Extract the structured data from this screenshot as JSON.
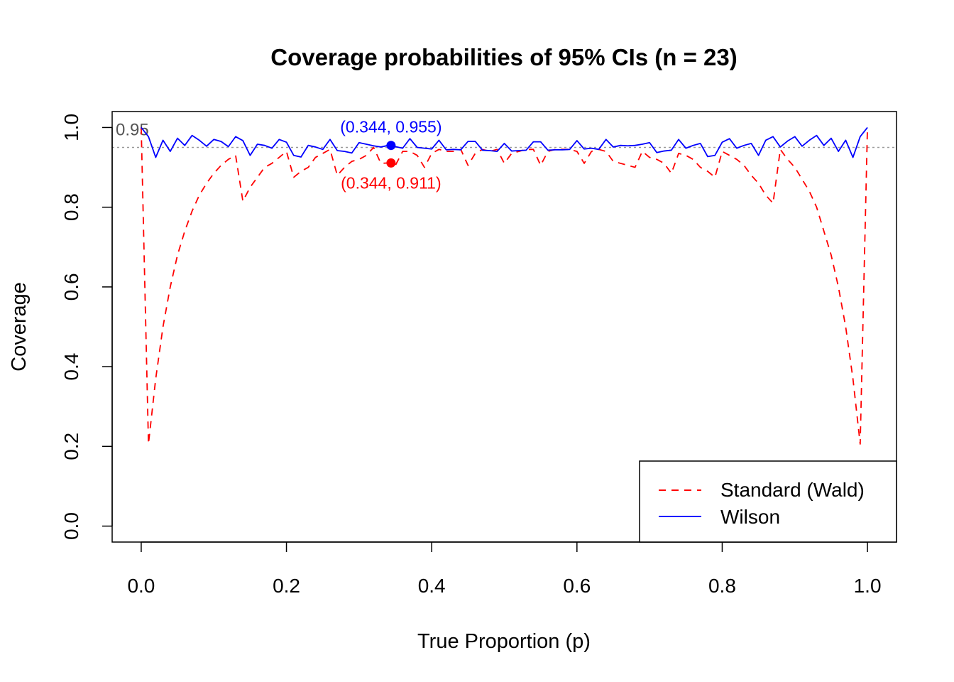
{
  "chart_data": {
    "type": "line",
    "title": "Coverage probabilities of 95% CIs (n = 23)",
    "xlabel": "True Proportion (p)",
    "ylabel": "Coverage",
    "xlim": [
      -0.04,
      1.04
    ],
    "ylim": [
      -0.04,
      1.04
    ],
    "x_ticks": [
      "0.0",
      "0.2",
      "0.4",
      "0.6",
      "0.8",
      "1.0"
    ],
    "y_ticks": [
      "0.0",
      "0.2",
      "0.4",
      "0.6",
      "0.8",
      "1.0"
    ],
    "reference_line": {
      "y": 0.95,
      "label": "0.95",
      "color": "#999999"
    },
    "legend": {
      "position": "bottom-right"
    },
    "series": [
      {
        "name": "Standard (Wald)",
        "color": "#ff0000",
        "dash": "dashed",
        "x": [
          0.0,
          0.01,
          0.02,
          0.03,
          0.04,
          0.05,
          0.06,
          0.07,
          0.08,
          0.09,
          0.1,
          0.11,
          0.12,
          0.13,
          0.14,
          0.15,
          0.16,
          0.17,
          0.18,
          0.19,
          0.2,
          0.21,
          0.22,
          0.23,
          0.24,
          0.25,
          0.26,
          0.27,
          0.28,
          0.29,
          0.3,
          0.31,
          0.32,
          0.33,
          0.34,
          0.35,
          0.36,
          0.37,
          0.38,
          0.39,
          0.4,
          0.41,
          0.42,
          0.43,
          0.44,
          0.45,
          0.46,
          0.47,
          0.48,
          0.49,
          0.5,
          0.51,
          0.52,
          0.53,
          0.54,
          0.55,
          0.56,
          0.57,
          0.58,
          0.59,
          0.6,
          0.61,
          0.62,
          0.63,
          0.64,
          0.65,
          0.66,
          0.67,
          0.68,
          0.69,
          0.7,
          0.71,
          0.72,
          0.73,
          0.74,
          0.75,
          0.76,
          0.77,
          0.78,
          0.79,
          0.8,
          0.81,
          0.82,
          0.83,
          0.84,
          0.85,
          0.86,
          0.87,
          0.88,
          0.89,
          0.9,
          0.91,
          0.92,
          0.93,
          0.94,
          0.95,
          0.96,
          0.97,
          0.98,
          0.99,
          1.0
        ],
        "y": [
          1.0,
          0.206,
          0.37,
          0.5,
          0.6,
          0.68,
          0.74,
          0.79,
          0.83,
          0.86,
          0.885,
          0.905,
          0.92,
          0.93,
          0.815,
          0.85,
          0.875,
          0.9,
          0.91,
          0.925,
          0.94,
          0.875,
          0.89,
          0.9,
          0.925,
          0.935,
          0.945,
          0.88,
          0.9,
          0.915,
          0.92,
          0.93,
          0.95,
          0.91,
          0.911,
          0.905,
          0.94,
          0.94,
          0.93,
          0.9,
          0.935,
          0.945,
          0.94,
          0.94,
          0.945,
          0.905,
          0.935,
          0.945,
          0.94,
          0.945,
          0.91,
          0.935,
          0.94,
          0.945,
          0.945,
          0.905,
          0.94,
          0.945,
          0.945,
          0.945,
          0.94,
          0.91,
          0.94,
          0.945,
          0.94,
          0.915,
          0.91,
          0.905,
          0.9,
          0.94,
          0.925,
          0.92,
          0.91,
          0.885,
          0.935,
          0.93,
          0.92,
          0.9,
          0.89,
          0.875,
          0.94,
          0.93,
          0.92,
          0.905,
          0.88,
          0.86,
          0.83,
          0.81,
          0.945,
          0.92,
          0.9,
          0.87,
          0.84,
          0.8,
          0.74,
          0.68,
          0.6,
          0.5,
          0.37,
          0.206,
          1.0
        ]
      },
      {
        "name": "Wilson",
        "color": "#0000ff",
        "dash": "solid",
        "x": [
          0.0,
          0.01,
          0.02,
          0.03,
          0.04,
          0.05,
          0.06,
          0.07,
          0.08,
          0.09,
          0.1,
          0.11,
          0.12,
          0.13,
          0.14,
          0.15,
          0.16,
          0.17,
          0.18,
          0.19,
          0.2,
          0.21,
          0.22,
          0.23,
          0.24,
          0.25,
          0.26,
          0.27,
          0.28,
          0.29,
          0.3,
          0.31,
          0.32,
          0.33,
          0.34,
          0.35,
          0.36,
          0.37,
          0.38,
          0.39,
          0.4,
          0.41,
          0.42,
          0.43,
          0.44,
          0.45,
          0.46,
          0.47,
          0.48,
          0.49,
          0.5,
          0.51,
          0.52,
          0.53,
          0.54,
          0.55,
          0.56,
          0.57,
          0.58,
          0.59,
          0.6,
          0.61,
          0.62,
          0.63,
          0.64,
          0.65,
          0.66,
          0.67,
          0.68,
          0.69,
          0.7,
          0.71,
          0.72,
          0.73,
          0.74,
          0.75,
          0.76,
          0.77,
          0.78,
          0.79,
          0.8,
          0.81,
          0.82,
          0.83,
          0.84,
          0.85,
          0.86,
          0.87,
          0.88,
          0.89,
          0.9,
          0.91,
          0.92,
          0.93,
          0.94,
          0.95,
          0.96,
          0.97,
          0.98,
          0.99,
          1.0
        ],
        "y": [
          1.0,
          0.977,
          0.925,
          0.968,
          0.94,
          0.973,
          0.955,
          0.98,
          0.968,
          0.953,
          0.97,
          0.965,
          0.952,
          0.977,
          0.967,
          0.93,
          0.958,
          0.955,
          0.948,
          0.97,
          0.963,
          0.93,
          0.926,
          0.955,
          0.951,
          0.945,
          0.97,
          0.942,
          0.94,
          0.936,
          0.962,
          0.958,
          0.954,
          0.951,
          0.955,
          0.952,
          0.948,
          0.972,
          0.95,
          0.948,
          0.946,
          0.968,
          0.944,
          0.945,
          0.944,
          0.965,
          0.965,
          0.943,
          0.942,
          0.94,
          0.96,
          0.941,
          0.942,
          0.943,
          0.964,
          0.964,
          0.943,
          0.944,
          0.944,
          0.945,
          0.967,
          0.946,
          0.948,
          0.945,
          0.97,
          0.951,
          0.955,
          0.954,
          0.955,
          0.958,
          0.962,
          0.937,
          0.941,
          0.943,
          0.97,
          0.948,
          0.955,
          0.96,
          0.927,
          0.93,
          0.963,
          0.972,
          0.948,
          0.955,
          0.96,
          0.93,
          0.968,
          0.977,
          0.951,
          0.966,
          0.977,
          0.953,
          0.968,
          0.98,
          0.955,
          0.973,
          0.94,
          0.968,
          0.925,
          0.977,
          1.0
        ]
      }
    ],
    "highlights": [
      {
        "series": "Wilson",
        "x": 0.344,
        "y": 0.955,
        "label": "(0.344, 0.955)",
        "color": "#0000ff"
      },
      {
        "series": "Standard (Wald)",
        "x": 0.344,
        "y": 0.911,
        "label": "(0.344, 0.911)",
        "color": "#ff0000"
      }
    ]
  }
}
